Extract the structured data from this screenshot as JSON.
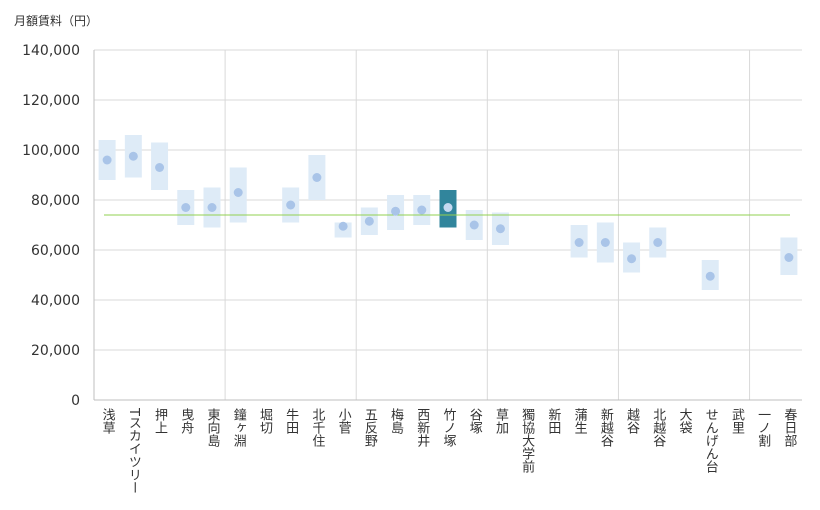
{
  "chart_data": {
    "type": "range",
    "ylabel": "月額賃料（円）",
    "ylim": [
      0,
      140000
    ],
    "yticks": [
      0,
      20000,
      40000,
      60000,
      80000,
      100000,
      120000,
      140000
    ],
    "ytick_labels": [
      "0",
      "20,000",
      "40,000",
      "60,000",
      "80,000",
      "100,000",
      "120,000",
      "140,000"
    ],
    "reference_line": 74000,
    "highlight": "竹ノ塚",
    "colors": {
      "range": "#deebf7",
      "dot": "#a9c4e8",
      "highlight_range": "#31859c",
      "highlight_dot": "#c5d9f1",
      "reference": "#92d050",
      "grid": "#d9d9d9",
      "axis": "#bfbfbf"
    },
    "categories": [
      "浅草",
      "Tスカイツリー",
      "押上",
      "曳舟",
      "東向島",
      "鐘ヶ淵",
      "堀切",
      "牛田",
      "北千住",
      "小菅",
      "五反野",
      "梅島",
      "西新井",
      "竹ノ塚",
      "谷塚",
      "草加",
      "獨協大学前",
      "新田",
      "蒲生",
      "新越谷",
      "越谷",
      "北越谷",
      "大袋",
      "せんげん台",
      "武里",
      "一ノ割",
      "春日部"
    ],
    "series": [
      {
        "name": "low",
        "values": [
          88000,
          89000,
          84000,
          70000,
          69000,
          71000,
          null,
          71000,
          80000,
          65000,
          66000,
          68000,
          70000,
          69000,
          64000,
          62000,
          null,
          null,
          57000,
          55000,
          51000,
          57000,
          null,
          44000,
          null,
          null,
          50000
        ]
      },
      {
        "name": "high",
        "values": [
          104000,
          106000,
          103000,
          84000,
          85000,
          93000,
          null,
          85000,
          98000,
          71000,
          77000,
          82000,
          82000,
          84000,
          76000,
          75000,
          null,
          null,
          70000,
          71000,
          63000,
          69000,
          null,
          56000,
          null,
          null,
          65000
        ]
      },
      {
        "name": "mean",
        "values": [
          96000,
          97500,
          93000,
          77000,
          77000,
          83000,
          null,
          78000,
          89000,
          69500,
          71500,
          75500,
          76000,
          77000,
          70000,
          68500,
          null,
          null,
          63000,
          63000,
          56500,
          63000,
          null,
          49500,
          null,
          null,
          57000
        ]
      }
    ]
  }
}
